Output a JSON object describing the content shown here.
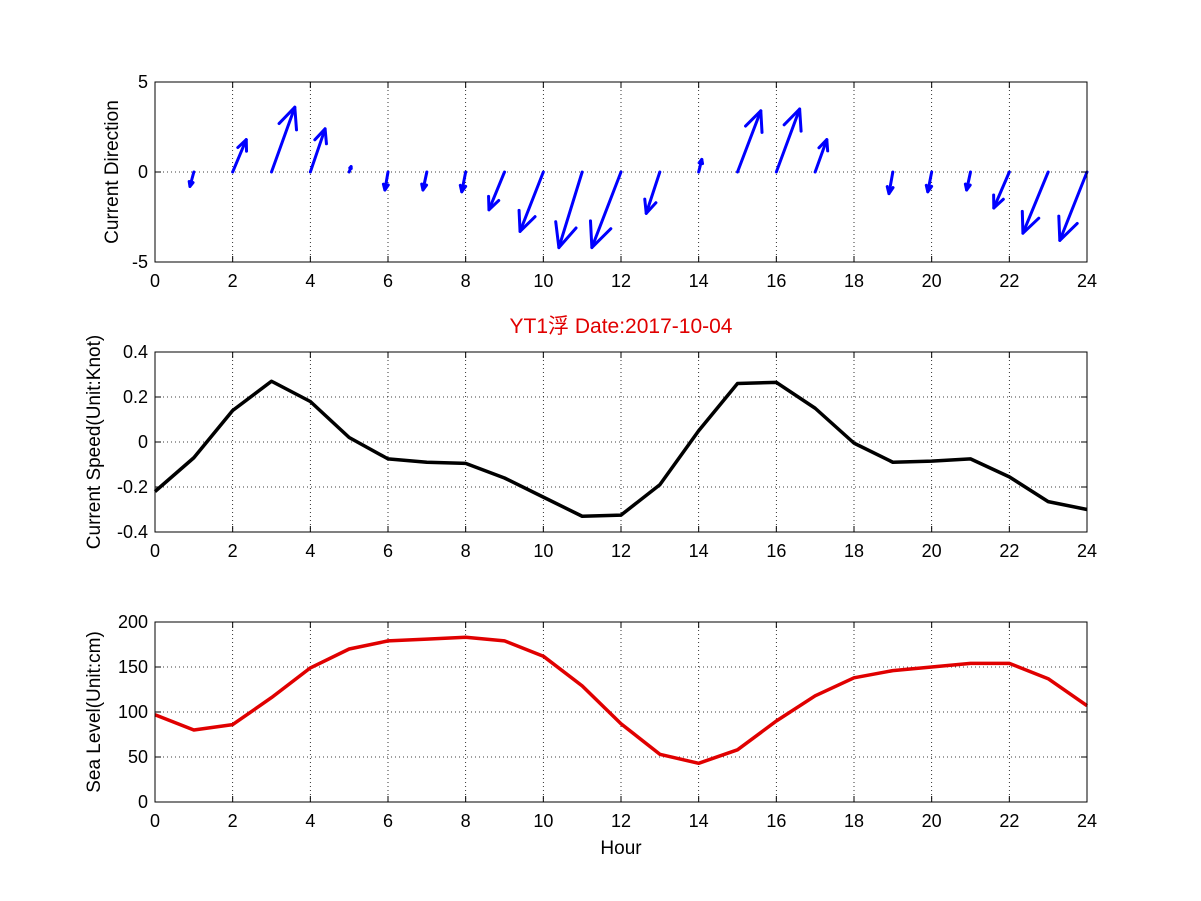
{
  "figure_title": "YT1浮   Date:2017-10-04",
  "colors": {
    "quiver": "#0000ff",
    "speed": "#000000",
    "level": "#e00000",
    "title": "#e00000"
  },
  "chart_data": [
    {
      "type": "quiver",
      "title": "",
      "xlabel": "",
      "ylabel": "Current Direction",
      "xlim": [
        0,
        24
      ],
      "ylim": [
        -5,
        5
      ],
      "xticks": [
        0,
        2,
        4,
        6,
        8,
        10,
        12,
        14,
        16,
        18,
        20,
        22,
        24
      ],
      "yticks": [
        -5,
        0,
        5
      ],
      "grid": true,
      "arrows": [
        {
          "x": 1,
          "u": -0.1,
          "v": -0.8
        },
        {
          "x": 2,
          "u": 0.35,
          "v": 1.8
        },
        {
          "x": 3,
          "u": 0.6,
          "v": 3.6
        },
        {
          "x": 4,
          "u": 0.38,
          "v": 2.4
        },
        {
          "x": 5,
          "u": 0.05,
          "v": 0.3
        },
        {
          "x": 6,
          "u": -0.08,
          "v": -1.0
        },
        {
          "x": 7,
          "u": -0.1,
          "v": -1.0
        },
        {
          "x": 8,
          "u": -0.1,
          "v": -1.1
        },
        {
          "x": 9,
          "u": -0.4,
          "v": -2.1
        },
        {
          "x": 10,
          "u": -0.6,
          "v": -3.3
        },
        {
          "x": 11,
          "u": -0.6,
          "v": -4.2
        },
        {
          "x": 12,
          "u": -0.75,
          "v": -4.2
        },
        {
          "x": 13,
          "u": -0.35,
          "v": -2.3
        },
        {
          "x": 14,
          "u": 0.08,
          "v": 0.7
        },
        {
          "x": 15,
          "u": 0.6,
          "v": 3.4
        },
        {
          "x": 16,
          "u": 0.6,
          "v": 3.5
        },
        {
          "x": 17,
          "u": 0.3,
          "v": 1.8
        },
        {
          "x": 19,
          "u": -0.1,
          "v": -1.2
        },
        {
          "x": 20,
          "u": -0.1,
          "v": -1.1
        },
        {
          "x": 21,
          "u": -0.1,
          "v": -1.0
        },
        {
          "x": 22,
          "u": -0.4,
          "v": -2.0
        },
        {
          "x": 23,
          "u": -0.65,
          "v": -3.4
        },
        {
          "x": 24,
          "u": -0.7,
          "v": -3.8
        }
      ]
    },
    {
      "type": "line",
      "title": "",
      "xlabel": "",
      "ylabel": "Current Speed(Unit:Knot)",
      "xlim": [
        0,
        24
      ],
      "ylim": [
        -0.4,
        0.4
      ],
      "xticks": [
        0,
        2,
        4,
        6,
        8,
        10,
        12,
        14,
        16,
        18,
        20,
        22,
        24
      ],
      "yticks": [
        -0.4,
        -0.2,
        0,
        0.2,
        0.4
      ],
      "grid": true,
      "x": [
        0,
        1,
        2,
        3,
        4,
        5,
        6,
        7,
        8,
        9,
        10,
        11,
        12,
        13,
        14,
        15,
        16,
        17,
        18,
        19,
        20,
        21,
        22,
        23,
        24
      ],
      "series": [
        {
          "values": [
            -0.22,
            -0.07,
            0.14,
            0.27,
            0.18,
            0.02,
            -0.075,
            -0.09,
            -0.095,
            -0.16,
            -0.245,
            -0.33,
            -0.325,
            -0.19,
            0.05,
            0.26,
            0.265,
            0.15,
            -0.005,
            -0.09,
            -0.085,
            -0.075,
            -0.155,
            -0.265,
            -0.3
          ]
        }
      ]
    },
    {
      "type": "line",
      "title": "",
      "xlabel": "Hour",
      "ylabel": "Sea Level(Unit:cm)",
      "xlim": [
        0,
        24
      ],
      "ylim": [
        0,
        200
      ],
      "xticks": [
        0,
        2,
        4,
        6,
        8,
        10,
        12,
        14,
        16,
        18,
        20,
        22,
        24
      ],
      "yticks": [
        0,
        50,
        100,
        150,
        200
      ],
      "grid": true,
      "x": [
        0,
        1,
        2,
        3,
        4,
        5,
        6,
        7,
        8,
        9,
        10,
        11,
        12,
        13,
        14,
        15,
        16,
        17,
        18,
        19,
        20,
        21,
        22,
        23,
        24
      ],
      "series": [
        {
          "values": [
            97,
            80,
            86,
            116,
            149,
            170,
            179,
            181,
            183,
            179,
            162,
            129,
            87,
            53,
            43,
            58,
            90,
            118,
            138,
            146,
            150,
            154,
            154,
            137,
            107
          ]
        }
      ]
    }
  ]
}
